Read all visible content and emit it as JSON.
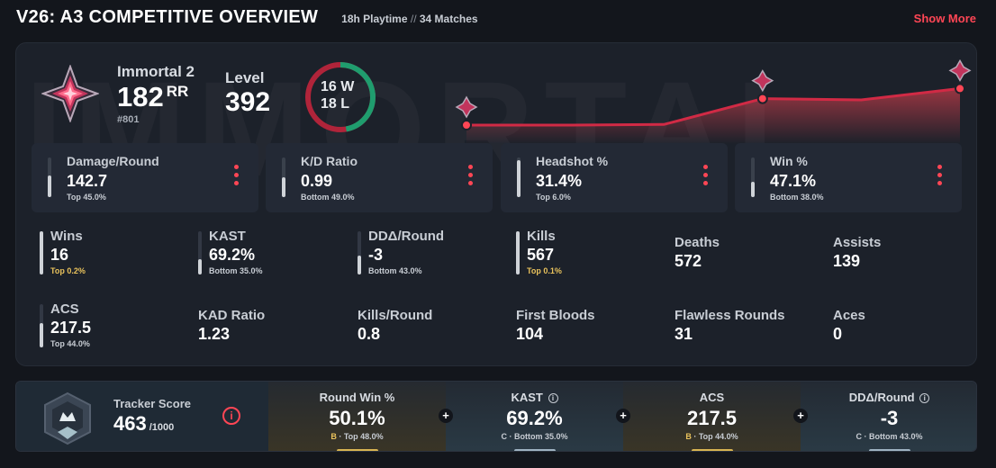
{
  "header": {
    "title": "V26: A3 COMPETITIVE OVERVIEW",
    "playtime": "18h Playtime",
    "separator": "//",
    "matches": "34 Matches",
    "show_more": "Show More"
  },
  "profile": {
    "rank_name": "Immortal 2",
    "rr": "182",
    "rr_unit": "RR",
    "leaderboard": "#801",
    "level_label": "Level",
    "level": "392",
    "wins": "16 W",
    "losses": "18 L",
    "win_fraction": 0.471,
    "watermark": "IMMORTAL"
  },
  "rr_history": {
    "values": [
      10,
      10,
      11,
      52,
      50,
      68
    ]
  },
  "top_stats": [
    {
      "label": "Damage/Round",
      "value": "142.7",
      "rank": "Top 45.0%",
      "level": 0.55
    },
    {
      "label": "K/D Ratio",
      "value": "0.99",
      "rank": "Bottom 49.0%",
      "level": 0.5
    },
    {
      "label": "Headshot %",
      "value": "31.4%",
      "rank": "Top 6.0%",
      "level": 0.94
    },
    {
      "label": "Win %",
      "value": "47.1%",
      "rank": "Bottom 38.0%",
      "level": 0.38
    }
  ],
  "stats_row1": [
    {
      "label": "Wins",
      "value": "16",
      "rank": "Top 0.2%",
      "level": 0.99
    },
    {
      "label": "KAST",
      "value": "69.2%",
      "rank": "Bottom 35.0%",
      "level": 0.35
    },
    {
      "label": "DDΔ/Round",
      "value": "-3",
      "rank": "Bottom 43.0%",
      "level": 0.43
    },
    {
      "label": "Kills",
      "value": "567",
      "rank": "Top 0.1%",
      "level": 0.99
    },
    {
      "label": "Deaths",
      "value": "572"
    },
    {
      "label": "Assists",
      "value": "139"
    }
  ],
  "stats_row2": [
    {
      "label": "ACS",
      "value": "217.5",
      "rank": "Top 44.0%",
      "level": 0.56
    },
    {
      "label": "KAD Ratio",
      "value": "1.23"
    },
    {
      "label": "Kills/Round",
      "value": "0.8"
    },
    {
      "label": "First Bloods",
      "value": "104"
    },
    {
      "label": "Flawless Rounds",
      "value": "31"
    },
    {
      "label": "Aces",
      "value": "0"
    }
  ],
  "tracker": {
    "label": "Tracker Score",
    "value": "463",
    "max": "/1000",
    "info": "i"
  },
  "metrics": [
    {
      "label": "Round Win %",
      "info": false,
      "value": "50.1%",
      "grade": "B",
      "rank": "· Top 48.0%"
    },
    {
      "label": "KAST",
      "info": true,
      "value": "69.2%",
      "grade": "C",
      "rank": "· Bottom 35.0%"
    },
    {
      "label": "ACS",
      "info": false,
      "value": "217.5",
      "grade": "B",
      "rank": "· Top 44.0%"
    },
    {
      "label": "DDΔ/Round",
      "info": true,
      "value": "-3",
      "grade": "C",
      "rank": "· Bottom 43.0%"
    }
  ],
  "colors": {
    "accent": "#ff4655",
    "win_ring": "#1f9d6e",
    "loss_ring": "#b0243a",
    "gold": "#e9c25c"
  }
}
